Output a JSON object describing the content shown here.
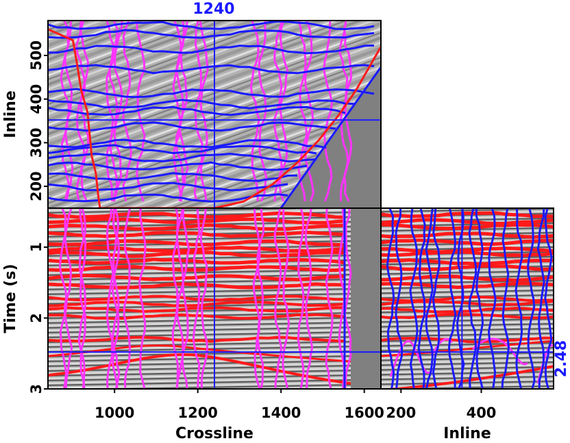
{
  "chart_data": [
    {
      "type": "line",
      "panel": "time-slice (top)",
      "xlabel": "",
      "ylabel": "Inline",
      "xlim": [
        840,
        1640
      ],
      "ylim": [
        150,
        580
      ],
      "yticks": [
        200,
        300,
        400,
        500
      ],
      "ytick_labels": [
        "200",
        "300",
        "400",
        "500"
      ],
      "annotation": "1240",
      "crosshair": {
        "crossline": 1240,
        "inline": 352
      },
      "series": [
        {
          "role": "red horizon trace",
          "points": [
            [
              840,
              560
            ],
            [
              900,
              535
            ],
            [
              910,
              480
            ],
            [
              920,
              420
            ],
            [
              935,
              370
            ],
            [
              940,
              320
            ],
            [
              945,
              270
            ],
            [
              955,
              230
            ],
            [
              960,
              185
            ],
            [
              965,
              150
            ],
            [
              1240,
              150
            ],
            [
              1310,
              165
            ],
            [
              1380,
              205
            ],
            [
              1440,
              255
            ],
            [
              1490,
              305
            ],
            [
              1540,
              365
            ],
            [
              1580,
              420
            ],
            [
              1640,
              520
            ]
          ]
        },
        {
          "role": "blue inline picks",
          "points": [
            [
              840,
              575
            ],
            [
              1240,
              580
            ],
            [
              1640,
              560
            ]
          ]
        }
      ]
    },
    {
      "type": "line",
      "panel": "inline section (bottom-left)",
      "xlabel": "Crossline",
      "ylabel": "Time (s)",
      "xlim": [
        840,
        1640
      ],
      "ylim": [
        3,
        0.45
      ],
      "xticks": [
        1000,
        1200,
        1400,
        1600
      ],
      "xtick_labels": [
        "1000",
        "1200",
        "1400",
        "1600"
      ],
      "yticks": [
        1,
        2,
        3
      ],
      "ytick_labels": [
        "1",
        "2",
        "3"
      ],
      "crosshair": {
        "time": 2.48,
        "crossline": 1240
      },
      "series": [
        {
          "role": "red horizons",
          "times": [
            0.55,
            0.63,
            0.72,
            0.82,
            0.94,
            1.03,
            1.1,
            1.2,
            1.3,
            1.43,
            1.55,
            1.72,
            1.8,
            1.88,
            1.98,
            2.3
          ]
        }
      ]
    },
    {
      "type": "line",
      "panel": "crossline section (bottom-right)",
      "xlabel": "Inline",
      "ylabel": "",
      "xlim": [
        150,
        580
      ],
      "ylim": [
        3,
        0.45
      ],
      "xticks": [
        200,
        400
      ],
      "xtick_labels": [
        "200",
        "400"
      ],
      "annotation": "2.48",
      "crosshair": {
        "time": 2.48,
        "inline": 352
      }
    }
  ],
  "colors": {
    "horizon": "#ff1a1a",
    "pick_magenta": "#ff33ff",
    "pick_blue": "#1a1aff",
    "mask": "#808080",
    "frame": "#000000"
  }
}
